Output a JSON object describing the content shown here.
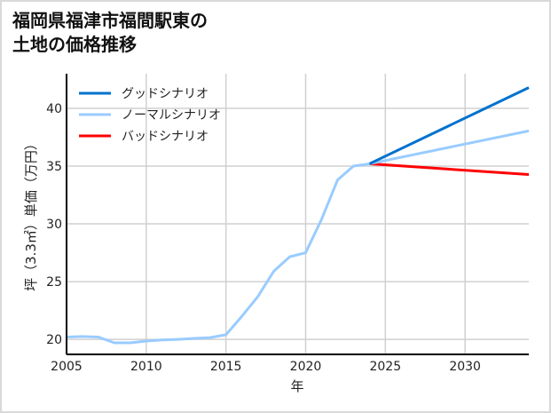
{
  "title": {
    "line1": "福岡県福津市福間駅東の",
    "line2": "土地の価格推移"
  },
  "chart_data": {
    "type": "line",
    "title": "福岡県福津市福間駅東の土地の価格推移",
    "xlabel": "年",
    "ylabel": "坪（3.3㎡）単価（万円）",
    "xlim": [
      2005,
      2034
    ],
    "ylim": [
      18.7,
      43.0
    ],
    "xticks": [
      2005,
      2010,
      2015,
      2020,
      2025,
      2030
    ],
    "yticks": [
      20,
      25,
      30,
      35,
      40
    ],
    "grid": true,
    "legend_position": "top-left",
    "historical": {
      "x": [
        2005,
        2006,
        2007,
        2008,
        2009,
        2010,
        2011,
        2012,
        2013,
        2014,
        2015,
        2016,
        2017,
        2018,
        2019,
        2020,
        2021,
        2022,
        2023,
        2024
      ],
      "y": [
        20.2,
        20.25,
        20.2,
        19.7,
        19.7,
        19.85,
        19.95,
        20.0,
        20.08,
        20.15,
        20.4,
        22.0,
        23.7,
        25.9,
        27.15,
        27.5,
        30.4,
        33.8,
        35.0,
        35.2
      ]
    },
    "series": [
      {
        "name": "グッドシナリオ",
        "color": "#0072CE",
        "x": [
          2024,
          2034
        ],
        "y": [
          35.2,
          41.8
        ]
      },
      {
        "name": "ノーマルシナリオ",
        "color": "#99CCFF",
        "x": [
          2024,
          2034
        ],
        "y": [
          35.2,
          38.05
        ]
      },
      {
        "name": "バッドシナリオ",
        "color": "#FF0000",
        "x": [
          2024,
          2034
        ],
        "y": [
          35.2,
          34.27
        ]
      }
    ]
  }
}
